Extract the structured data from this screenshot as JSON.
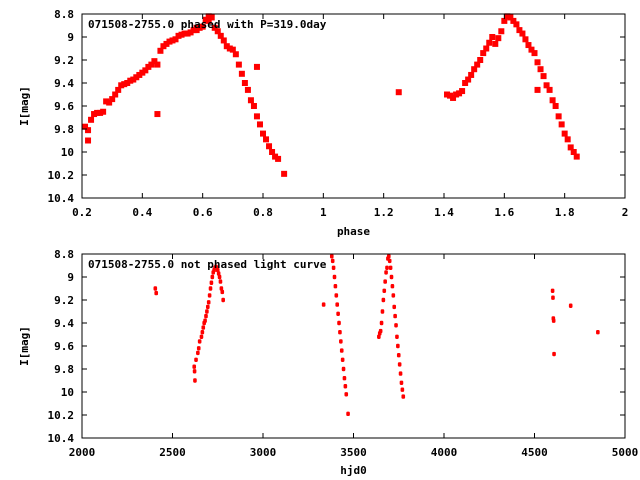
{
  "chart_data": [
    {
      "type": "scatter",
      "title": "071508-2755.0 phased with P=319.0day",
      "xlabel": "phase",
      "ylabel": "I[mag]",
      "xlim": [
        0.2,
        2.0
      ],
      "ylim": [
        8.8,
        10.4
      ],
      "y_inverted": true,
      "x_ticks": [
        "0.2",
        "0.4",
        "0.6",
        "0.8",
        "1",
        "1.2",
        "1.4",
        "1.6",
        "1.8",
        "2"
      ],
      "y_ticks": [
        "8.8",
        "9",
        "9.2",
        "9.4",
        "9.6",
        "9.8",
        "10",
        "10.2",
        "10.4"
      ],
      "marker_color": "#ff0000",
      "marker": "filled-square",
      "grid": false,
      "series": [
        {
          "points": [
            [
              0.21,
              9.78
            ],
            [
              0.22,
              9.81
            ],
            [
              0.22,
              9.9
            ],
            [
              0.23,
              9.72
            ],
            [
              0.24,
              9.67
            ],
            [
              0.25,
              9.66
            ],
            [
              0.26,
              9.66
            ],
            [
              0.27,
              9.65
            ],
            [
              0.28,
              9.56
            ],
            [
              0.29,
              9.57
            ],
            [
              0.3,
              9.54
            ],
            [
              0.31,
              9.5
            ],
            [
              0.32,
              9.46
            ],
            [
              0.33,
              9.42
            ],
            [
              0.34,
              9.41
            ],
            [
              0.35,
              9.4
            ],
            [
              0.36,
              9.38
            ],
            [
              0.37,
              9.37
            ],
            [
              0.38,
              9.35
            ],
            [
              0.39,
              9.33
            ],
            [
              0.4,
              9.31
            ],
            [
              0.41,
              9.29
            ],
            [
              0.42,
              9.26
            ],
            [
              0.43,
              9.24
            ],
            [
              0.44,
              9.21
            ],
            [
              0.45,
              9.24
            ],
            [
              0.45,
              9.67
            ],
            [
              0.46,
              9.12
            ],
            [
              0.47,
              9.08
            ],
            [
              0.48,
              9.06
            ],
            [
              0.49,
              9.04
            ],
            [
              0.5,
              9.03
            ],
            [
              0.51,
              9.02
            ],
            [
              0.52,
              8.99
            ],
            [
              0.53,
              8.98
            ],
            [
              0.54,
              8.97
            ],
            [
              0.55,
              8.97
            ],
            [
              0.56,
              8.96
            ],
            [
              0.57,
              8.94
            ],
            [
              0.58,
              8.92
            ],
            [
              0.59,
              8.92
            ],
            [
              0.6,
              8.91
            ],
            [
              0.61,
              8.85
            ],
            [
              0.62,
              8.82
            ],
            [
              0.63,
              8.83
            ],
            [
              0.64,
              8.92
            ],
            [
              0.65,
              8.95
            ],
            [
              0.66,
              8.99
            ],
            [
              0.67,
              9.03
            ],
            [
              0.68,
              9.08
            ],
            [
              0.69,
              9.1
            ],
            [
              0.7,
              9.11
            ],
            [
              0.71,
              9.15
            ],
            [
              0.72,
              9.24
            ],
            [
              0.73,
              9.32
            ],
            [
              0.74,
              9.4
            ],
            [
              0.75,
              9.46
            ],
            [
              0.76,
              9.55
            ],
            [
              0.77,
              9.6
            ],
            [
              0.78,
              9.69
            ],
            [
              0.79,
              9.76
            ],
            [
              0.8,
              9.84
            ],
            [
              0.81,
              9.89
            ],
            [
              0.82,
              9.95
            ],
            [
              0.83,
              10.0
            ],
            [
              0.84,
              10.04
            ],
            [
              0.85,
              10.06
            ],
            [
              0.87,
              10.19
            ],
            [
              0.78,
              9.26
            ],
            [
              0.58,
              8.94
            ],
            [
              0.62,
              8.86
            ]
          ]
        },
        {
          "points": [
            [
              1.25,
              9.48
            ],
            [
              1.41,
              9.5
            ],
            [
              1.42,
              9.51
            ],
            [
              1.43,
              9.53
            ],
            [
              1.44,
              9.5
            ],
            [
              1.45,
              9.49
            ],
            [
              1.46,
              9.47
            ],
            [
              1.47,
              9.4
            ],
            [
              1.48,
              9.37
            ],
            [
              1.49,
              9.33
            ],
            [
              1.5,
              9.28
            ],
            [
              1.51,
              9.24
            ],
            [
              1.52,
              9.2
            ],
            [
              1.53,
              9.14
            ],
            [
              1.54,
              9.1
            ],
            [
              1.55,
              9.05
            ],
            [
              1.56,
              9.0
            ],
            [
              1.57,
              9.06
            ],
            [
              1.58,
              9.01
            ],
            [
              1.59,
              8.95
            ],
            [
              1.6,
              8.86
            ],
            [
              1.61,
              8.82
            ],
            [
              1.62,
              8.83
            ],
            [
              1.63,
              8.86
            ],
            [
              1.64,
              8.89
            ],
            [
              1.65,
              8.94
            ],
            [
              1.66,
              8.97
            ],
            [
              1.67,
              9.02
            ],
            [
              1.68,
              9.07
            ],
            [
              1.69,
              9.11
            ],
            [
              1.7,
              9.14
            ],
            [
              1.71,
              9.22
            ],
            [
              1.72,
              9.28
            ],
            [
              1.73,
              9.34
            ],
            [
              1.74,
              9.42
            ],
            [
              1.75,
              9.46
            ],
            [
              1.76,
              9.55
            ],
            [
              1.77,
              9.6
            ],
            [
              1.78,
              9.69
            ],
            [
              1.79,
              9.76
            ],
            [
              1.8,
              9.84
            ],
            [
              1.81,
              9.89
            ],
            [
              1.82,
              9.96
            ],
            [
              1.83,
              10.0
            ],
            [
              1.84,
              10.04
            ],
            [
              1.71,
              9.46
            ]
          ]
        }
      ]
    },
    {
      "type": "scatter",
      "title": "071508-2755.0 not phased light curve",
      "xlabel": "hjd0",
      "ylabel": "I[mag]",
      "xlim": [
        2000,
        5000
      ],
      "ylim": [
        8.8,
        10.4
      ],
      "y_inverted": true,
      "x_ticks": [
        "2000",
        "2500",
        "3000",
        "3500",
        "4000",
        "4500",
        "5000"
      ],
      "y_ticks": [
        "8.8",
        "9",
        "9.2",
        "9.4",
        "9.6",
        "9.8",
        "10",
        "10.2",
        "10.4"
      ],
      "marker_color": "#ff0000",
      "marker": "filled-dot",
      "grid": false,
      "series": [
        {
          "points": [
            [
              2405,
              9.1
            ],
            [
              2410,
              9.14
            ],
            [
              2620,
              9.78
            ],
            [
              2622,
              9.82
            ],
            [
              2624,
              9.9
            ],
            [
              2630,
              9.72
            ],
            [
              2640,
              9.66
            ],
            [
              2645,
              9.62
            ],
            [
              2650,
              9.56
            ],
            [
              2660,
              9.52
            ],
            [
              2665,
              9.48
            ],
            [
              2670,
              9.44
            ],
            [
              2675,
              9.4
            ],
            [
              2680,
              9.38
            ],
            [
              2685,
              9.34
            ],
            [
              2690,
              9.3
            ],
            [
              2695,
              9.26
            ],
            [
              2700,
              9.22
            ],
            [
              2705,
              9.16
            ],
            [
              2710,
              9.1
            ],
            [
              2715,
              9.05
            ],
            [
              2720,
              9.0
            ],
            [
              2725,
              8.96
            ],
            [
              2730,
              8.94
            ],
            [
              2735,
              8.92
            ],
            [
              2740,
              8.91
            ],
            [
              2745,
              8.92
            ],
            [
              2750,
              8.94
            ],
            [
              2755,
              8.97
            ],
            [
              2760,
              9.0
            ],
            [
              2765,
              9.04
            ],
            [
              2770,
              9.1
            ],
            [
              2775,
              9.13
            ],
            [
              2780,
              9.2
            ],
            [
              3335,
              9.24
            ],
            [
              3380,
              8.82
            ],
            [
              3385,
              8.86
            ],
            [
              3390,
              8.92
            ],
            [
              3395,
              9.0
            ],
            [
              3400,
              9.08
            ],
            [
              3405,
              9.16
            ],
            [
              3410,
              9.24
            ],
            [
              3415,
              9.32
            ],
            [
              3420,
              9.4
            ],
            [
              3425,
              9.48
            ],
            [
              3430,
              9.56
            ],
            [
              3435,
              9.64
            ],
            [
              3440,
              9.72
            ],
            [
              3445,
              9.8
            ],
            [
              3450,
              9.88
            ],
            [
              3455,
              9.95
            ],
            [
              3460,
              10.02
            ],
            [
              3470,
              10.19
            ],
            [
              3640,
              9.52
            ],
            [
              3645,
              9.49
            ],
            [
              3650,
              9.47
            ],
            [
              3655,
              9.4
            ],
            [
              3660,
              9.3
            ],
            [
              3665,
              9.2
            ],
            [
              3670,
              9.12
            ],
            [
              3675,
              9.04
            ],
            [
              3680,
              8.96
            ],
            [
              3685,
              8.92
            ],
            [
              3690,
              8.84
            ],
            [
              3695,
              8.82
            ],
            [
              3700,
              8.86
            ],
            [
              3705,
              8.92
            ],
            [
              3710,
              9.0
            ],
            [
              3715,
              9.08
            ],
            [
              3720,
              9.16
            ],
            [
              3725,
              9.26
            ],
            [
              3730,
              9.34
            ],
            [
              3735,
              9.42
            ],
            [
              3740,
              9.52
            ],
            [
              3745,
              9.6
            ],
            [
              3750,
              9.68
            ],
            [
              3755,
              9.76
            ],
            [
              3760,
              9.84
            ],
            [
              3765,
              9.92
            ],
            [
              3770,
              9.98
            ],
            [
              3775,
              10.04
            ],
            [
              4600,
              9.12
            ],
            [
              4602,
              9.18
            ],
            [
              4604,
              9.36
            ],
            [
              4606,
              9.38
            ],
            [
              4608,
              9.67
            ],
            [
              4700,
              9.25
            ],
            [
              4850,
              9.48
            ]
          ]
        }
      ]
    }
  ]
}
